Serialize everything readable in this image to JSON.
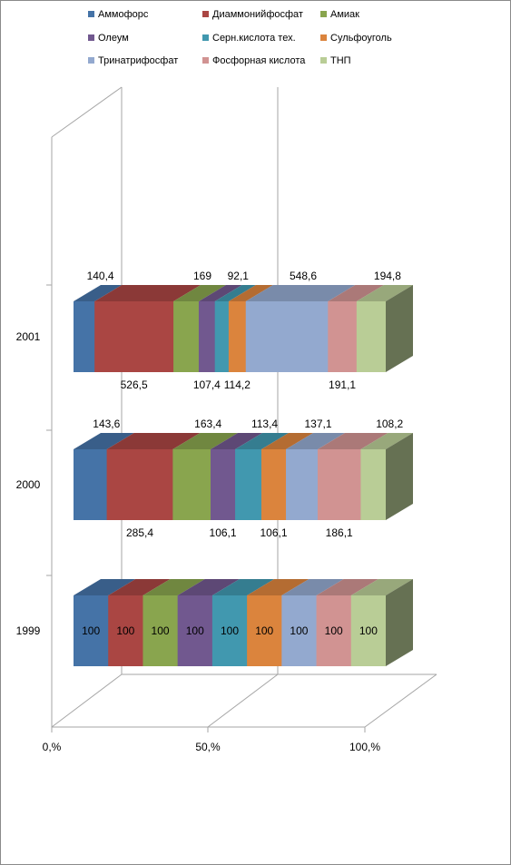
{
  "chart_data": {
    "type": "bar",
    "stacked": "percent",
    "three_d": true,
    "orientation": "horizontal",
    "title": "",
    "xlabel": "",
    "ylabel": "",
    "categories": [
      "1999",
      "2000",
      "2001"
    ],
    "x_ticks": [
      "0,%",
      "50,%",
      "100,%"
    ],
    "xlim": [
      0,
      100
    ],
    "legend_position": "top",
    "series": [
      {
        "name": "Аммофорс",
        "color": "#4573a7",
        "values": [
          100,
          143.6,
          140.4
        ],
        "labels": [
          "100",
          "143,6",
          "140,4"
        ]
      },
      {
        "name": "Диаммонийфосфат",
        "color": "#aa4643",
        "values": [
          100,
          285.4,
          526.5
        ],
        "labels": [
          "100",
          "285,4",
          "526,5"
        ]
      },
      {
        "name": "Амиак",
        "color": "#89a54e",
        "values": [
          100,
          163.4,
          169
        ],
        "labels": [
          "100",
          "163,4",
          "169"
        ]
      },
      {
        "name": "Олеум",
        "color": "#71588f",
        "values": [
          100,
          106.1,
          107.4
        ],
        "labels": [
          "100",
          "106,1",
          "107,4"
        ]
      },
      {
        "name": "Серн.кислота тех.",
        "color": "#4198af",
        "values": [
          100,
          113.4,
          92.1
        ],
        "labels": [
          "100",
          "113,4",
          "92,1"
        ]
      },
      {
        "name": "Сульфоуголь",
        "color": "#db843d",
        "values": [
          100,
          106.1,
          114.2
        ],
        "labels": [
          "100",
          "106,1",
          "114,2"
        ]
      },
      {
        "name": "Тринатрифосфат",
        "color": "#93a9cf",
        "values": [
          100,
          137.1,
          548.6
        ],
        "labels": [
          "100",
          "137,1",
          "548,6"
        ]
      },
      {
        "name": "Фосфорная кислота",
        "color": "#d19392",
        "values": [
          100,
          186.1,
          191.1
        ],
        "labels": [
          "100",
          "186,1",
          "191,1"
        ]
      },
      {
        "name": "ТНП",
        "color": "#b9cd96",
        "values": [
          100,
          108.2,
          194.8
        ],
        "labels": [
          "100",
          "108,2",
          "194,8"
        ]
      }
    ]
  }
}
